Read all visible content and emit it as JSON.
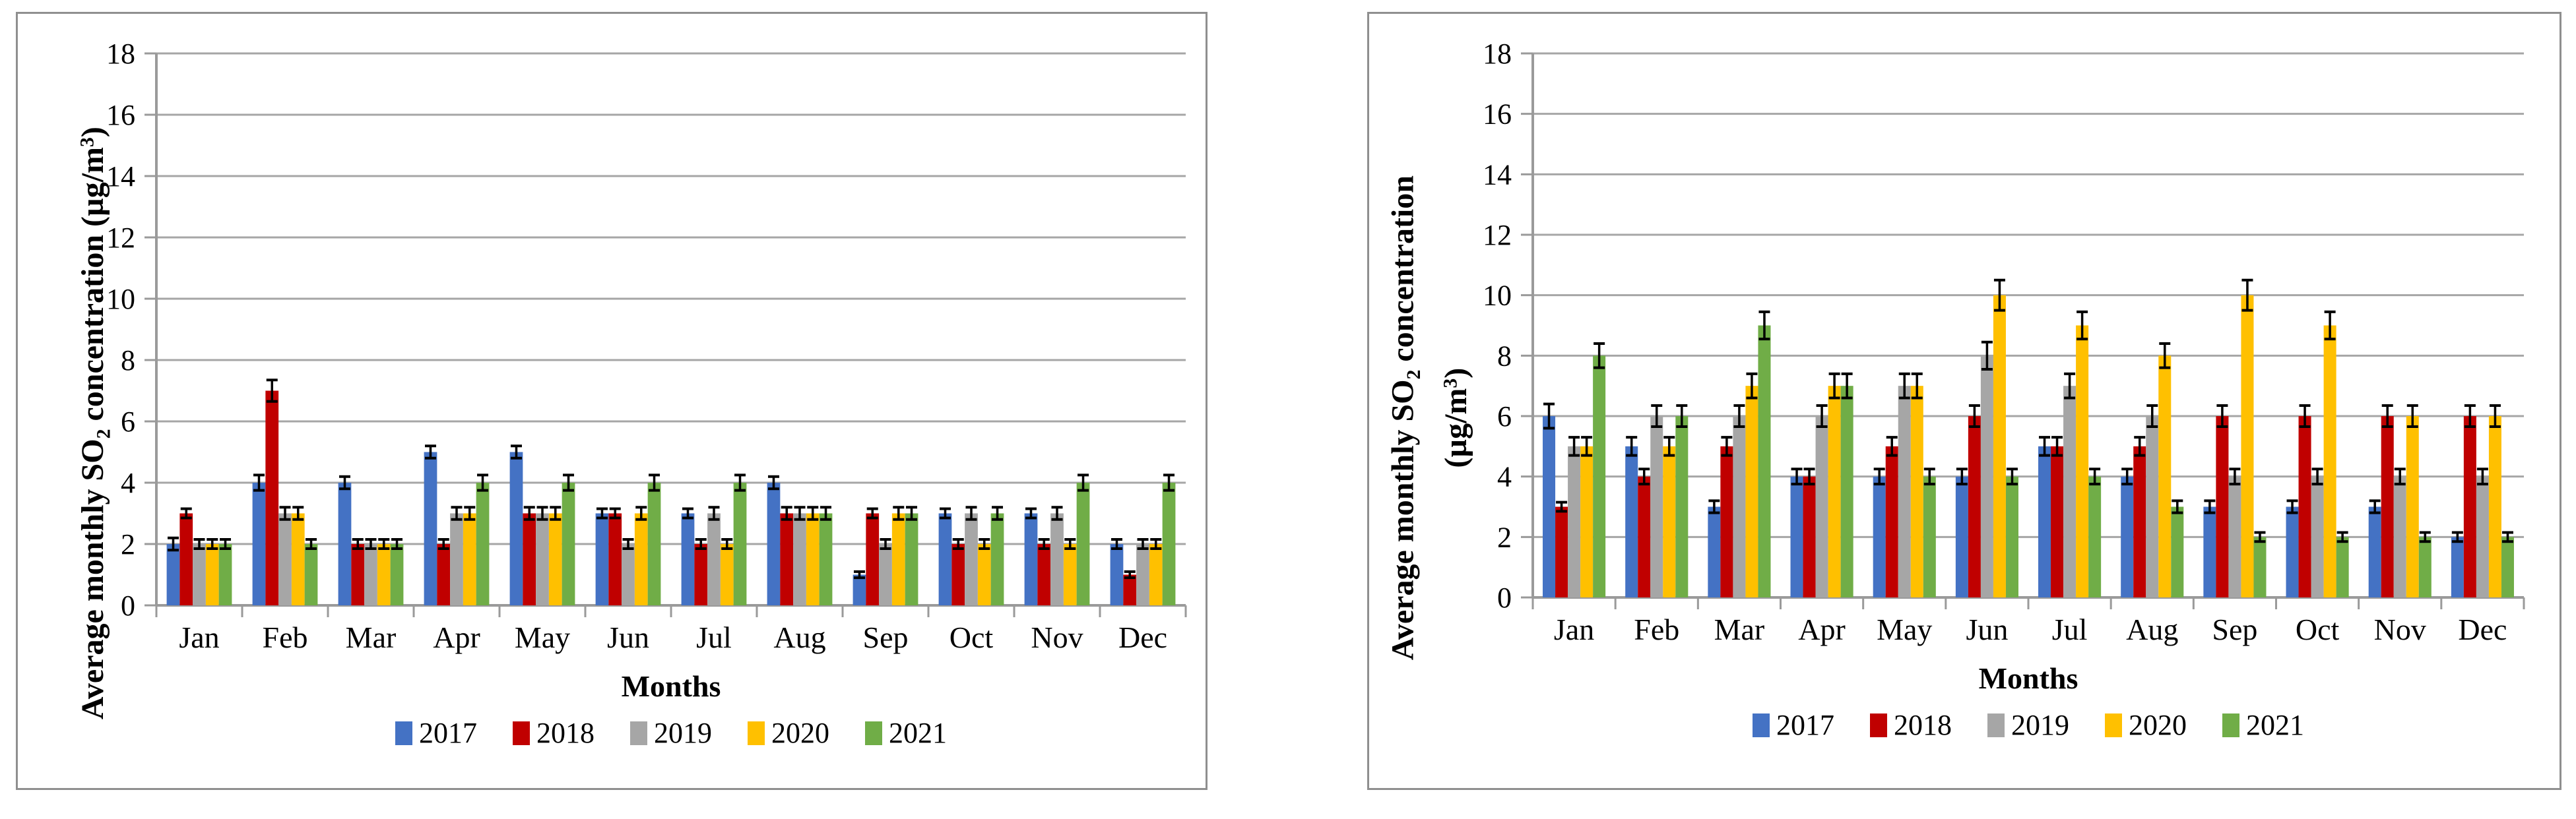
{
  "figure": {
    "description": "Two grouped bar charts of average monthly SO2 concentration by year (2017-2021)"
  },
  "chart_data": [
    {
      "type": "bar",
      "panel": "left",
      "title": "",
      "xlabel": "Months",
      "ylabel": "Average monthly SO2 concentration (µg/m3)",
      "ylabel_rich": [
        [
          {
            "t": "Average monthly SO"
          },
          {
            "t": "2",
            "sub": true
          },
          {
            "t": " concentration (µg/m"
          },
          {
            "t": "3",
            "sup": true
          },
          {
            "t": ")"
          }
        ]
      ],
      "categories": [
        "Jan",
        "Feb",
        "Mar",
        "Apr",
        "May",
        "Jun",
        "Jul",
        "Aug",
        "Sep",
        "Oct",
        "Nov",
        "Dec"
      ],
      "ylim": [
        0,
        18
      ],
      "ytick_step": 2,
      "grid": "horizontal",
      "legend_position": "bottom",
      "error_bars": true,
      "series": [
        {
          "name": "2017",
          "color": "#4472C4",
          "values": [
            2,
            4,
            4,
            5,
            5,
            3,
            3,
            4,
            1,
            3,
            3,
            2
          ],
          "errors": [
            0.2,
            0.25,
            0.2,
            0.2,
            0.2,
            0.15,
            0.15,
            0.2,
            0.1,
            0.15,
            0.15,
            0.15
          ]
        },
        {
          "name": "2018",
          "color": "#C00000",
          "values": [
            3,
            7,
            2,
            2,
            3,
            3,
            2,
            3,
            3,
            2,
            2,
            1
          ],
          "errors": [
            0.15,
            0.35,
            0.15,
            0.15,
            0.2,
            0.15,
            0.15,
            0.2,
            0.15,
            0.15,
            0.15,
            0.1
          ]
        },
        {
          "name": "2019",
          "color": "#A6A6A6",
          "values": [
            2,
            3,
            2,
            3,
            3,
            2,
            3,
            3,
            2,
            3,
            3,
            2
          ],
          "errors": [
            0.15,
            0.2,
            0.15,
            0.2,
            0.2,
            0.15,
            0.2,
            0.2,
            0.15,
            0.2,
            0.2,
            0.15
          ]
        },
        {
          "name": "2020",
          "color": "#FFC000",
          "values": [
            2,
            3,
            2,
            3,
            3,
            3,
            2,
            3,
            3,
            2,
            2,
            2
          ],
          "errors": [
            0.15,
            0.2,
            0.15,
            0.2,
            0.2,
            0.2,
            0.15,
            0.2,
            0.2,
            0.15,
            0.15,
            0.15
          ]
        },
        {
          "name": "2021",
          "color": "#70AD47",
          "values": [
            2,
            2,
            2,
            4,
            4,
            4,
            4,
            3,
            3,
            3,
            4,
            4
          ],
          "errors": [
            0.15,
            0.15,
            0.15,
            0.25,
            0.25,
            0.25,
            0.25,
            0.2,
            0.2,
            0.2,
            0.25,
            0.25
          ]
        }
      ]
    },
    {
      "type": "bar",
      "panel": "right",
      "title": "",
      "xlabel": "Months",
      "ylabel": "Average monthly SO2 concentration (µg/m3)",
      "ylabel_rich": [
        [
          {
            "t": "Average monthly SO"
          },
          {
            "t": "2",
            "sub": true
          },
          {
            "t": " concentration"
          }
        ],
        [
          {
            "t": "(µg/m"
          },
          {
            "t": "3",
            "sup": true
          },
          {
            "t": ")"
          }
        ]
      ],
      "categories": [
        "Jan",
        "Feb",
        "Mar",
        "Apr",
        "May",
        "Jun",
        "Jul",
        "Aug",
        "Sep",
        "Oct",
        "Nov",
        "Dec"
      ],
      "ylim": [
        0,
        18
      ],
      "ytick_step": 2,
      "grid": "horizontal",
      "legend_position": "bottom",
      "error_bars": true,
      "series": [
        {
          "name": "2017",
          "color": "#4472C4",
          "values": [
            6,
            5,
            3,
            4,
            4,
            4,
            5,
            4,
            3,
            3,
            3,
            2
          ],
          "errors": [
            0.4,
            0.3,
            0.2,
            0.25,
            0.25,
            0.25,
            0.3,
            0.25,
            0.2,
            0.2,
            0.2,
            0.15
          ]
        },
        {
          "name": "2018",
          "color": "#C00000",
          "values": [
            3,
            4,
            5,
            4,
            5,
            6,
            5,
            5,
            6,
            6,
            6,
            6
          ],
          "errors": [
            0.15,
            0.25,
            0.3,
            0.25,
            0.3,
            0.35,
            0.3,
            0.3,
            0.35,
            0.35,
            0.35,
            0.35
          ]
        },
        {
          "name": "2019",
          "color": "#A6A6A6",
          "values": [
            5,
            6,
            6,
            6,
            7,
            8,
            7,
            6,
            4,
            4,
            4,
            4
          ],
          "errors": [
            0.3,
            0.35,
            0.35,
            0.35,
            0.4,
            0.45,
            0.4,
            0.35,
            0.25,
            0.25,
            0.25,
            0.25
          ]
        },
        {
          "name": "2020",
          "color": "#FFC000",
          "values": [
            5,
            5,
            7,
            7,
            7,
            10,
            9,
            8,
            10,
            9,
            6,
            6
          ],
          "errors": [
            0.3,
            0.3,
            0.4,
            0.4,
            0.4,
            0.5,
            0.45,
            0.4,
            0.5,
            0.45,
            0.35,
            0.35
          ]
        },
        {
          "name": "2021",
          "color": "#70AD47",
          "values": [
            8,
            6,
            9,
            7,
            4,
            4,
            4,
            3,
            2,
            2,
            2,
            2
          ],
          "errors": [
            0.4,
            0.35,
            0.45,
            0.4,
            0.25,
            0.25,
            0.25,
            0.2,
            0.15,
            0.15,
            0.15,
            0.15
          ]
        }
      ]
    }
  ]
}
